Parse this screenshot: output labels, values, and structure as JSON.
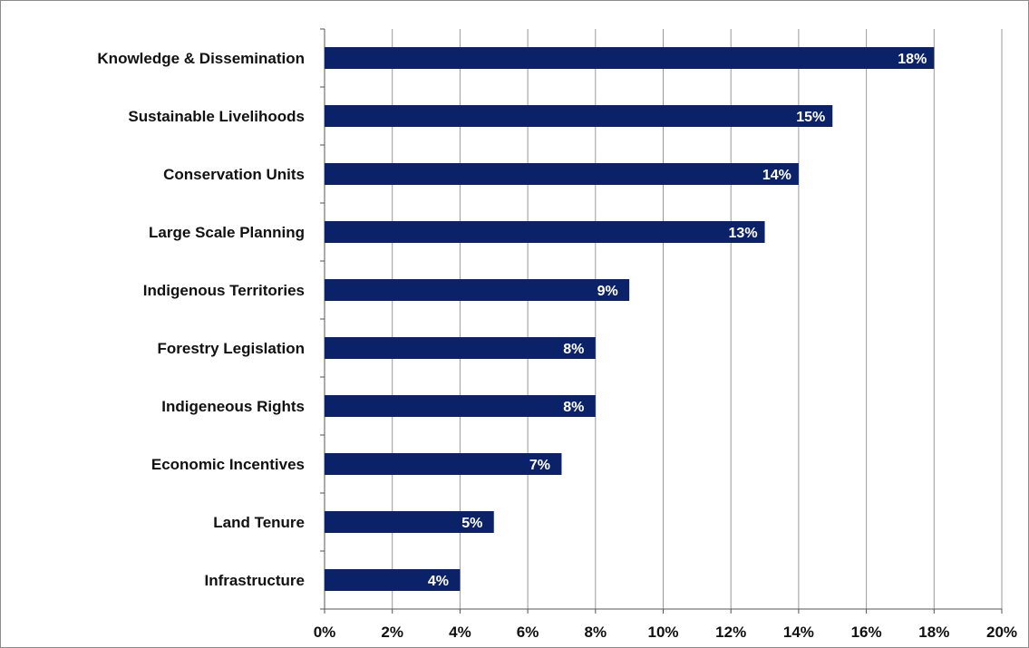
{
  "chart_data": {
    "type": "bar",
    "orientation": "horizontal",
    "title": "",
    "xlabel": "",
    "ylabel": "",
    "categories": [
      "Knowledge & Dissemination",
      "Sustainable Livelihoods",
      "Conservation Units",
      "Large Scale Planning",
      "Indigenous Territories",
      "Forestry Legislation",
      "Indigeneous Rights",
      "Economic Incentives",
      "Land Tenure",
      "Infrastructure"
    ],
    "values": [
      18,
      15,
      14,
      13,
      9,
      8,
      8,
      7,
      5,
      4
    ],
    "data_labels": [
      "18%",
      "15%",
      "14%",
      "13%",
      "9%",
      "8%",
      "8%",
      "7%",
      "5%",
      "4%"
    ],
    "xlim": [
      0,
      20
    ],
    "x_ticks": [
      0,
      2,
      4,
      6,
      8,
      10,
      12,
      14,
      16,
      18,
      20
    ],
    "x_tick_labels": [
      "0%",
      "2%",
      "4%",
      "6%",
      "8%",
      "10%",
      "12%",
      "14%",
      "16%",
      "18%",
      "20%"
    ],
    "grid": "vertical",
    "legend": "none",
    "colors": {
      "bar": "#0b2268",
      "grid": "#9a9a9a",
      "axis": "#555555",
      "data_label": "#ffffff"
    }
  }
}
